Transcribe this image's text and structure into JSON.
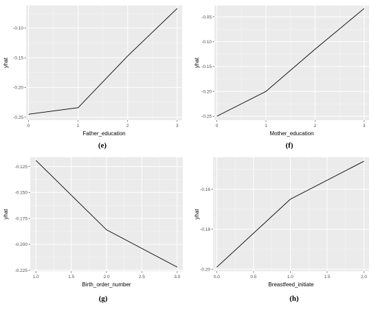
{
  "chart_data": [
    {
      "tag": "(e)",
      "type": "line",
      "xlabel": "Father_education",
      "ylabel": "yhat",
      "x": [
        0,
        1,
        2,
        3
      ],
      "y": [
        -0.245,
        -0.234,
        -0.147,
        -0.067
      ],
      "xlim": [
        -0.05,
        3.1
      ],
      "ylim": [
        -0.255,
        -0.062
      ],
      "xticks": [
        0,
        1,
        2,
        3
      ],
      "xtick_labels": [
        "0",
        "1",
        "2",
        "3"
      ],
      "yticks": [
        -0.25,
        -0.2,
        -0.15,
        -0.1
      ],
      "ytick_labels": [
        "-0.25",
        "-0.20",
        "-0.15",
        "-0.10"
      ],
      "grid": true
    },
    {
      "tag": "(f)",
      "type": "line",
      "xlabel": "Mother_education",
      "ylabel": "yhat",
      "x": [
        0,
        1,
        2,
        3
      ],
      "y": [
        -0.25,
        -0.2,
        -0.115,
        -0.033
      ],
      "xlim": [
        -0.05,
        3.1
      ],
      "ylim": [
        -0.258,
        -0.027
      ],
      "xticks": [
        0,
        1,
        2,
        3
      ],
      "xtick_labels": [
        "0",
        "1",
        "2",
        "3"
      ],
      "yticks": [
        -0.25,
        -0.2,
        -0.15,
        -0.1,
        -0.05
      ],
      "ytick_labels": [
        "-0.25",
        "-0.20",
        "-0.15",
        "-0.10",
        "-0.05"
      ],
      "grid": true
    },
    {
      "tag": "(g)",
      "type": "line",
      "xlabel": "Birth_order_number",
      "ylabel": "yhat",
      "x": [
        1.0,
        2.0,
        3.0
      ],
      "y": [
        -0.119,
        -0.186,
        -0.222
      ],
      "xlim": [
        0.92,
        3.08
      ],
      "ylim": [
        -0.226,
        -0.116
      ],
      "xticks": [
        1.0,
        1.5,
        2.0,
        2.5,
        3.0
      ],
      "xtick_labels": [
        "1.0",
        "1.5",
        "2.0",
        "2.5",
        "3.0"
      ],
      "yticks": [
        -0.225,
        -0.2,
        -0.175,
        -0.15,
        -0.125
      ],
      "ytick_labels": [
        "-0.225",
        "-0.200",
        "-0.175",
        "-0.150",
        "-0.125"
      ],
      "grid": true
    },
    {
      "tag": "(h)",
      "type": "line",
      "xlabel": "Breastfeed_initiate",
      "ylabel": "yhat",
      "x": [
        0,
        1,
        2
      ],
      "y": [
        -0.199,
        -0.165,
        -0.146
      ],
      "xlim": [
        -0.05,
        2.07
      ],
      "ylim": [
        -0.201,
        -0.144
      ],
      "xticks": [
        0.0,
        0.5,
        1.0,
        1.5,
        2.0
      ],
      "xtick_labels": [
        "0.0",
        "0.5",
        "1.0",
        "1.5",
        "2.0"
      ],
      "yticks": [
        -0.2,
        -0.18,
        -0.16
      ],
      "ytick_labels": [
        "-0.20",
        "-0.18",
        "-0.16"
      ],
      "grid": true
    }
  ]
}
